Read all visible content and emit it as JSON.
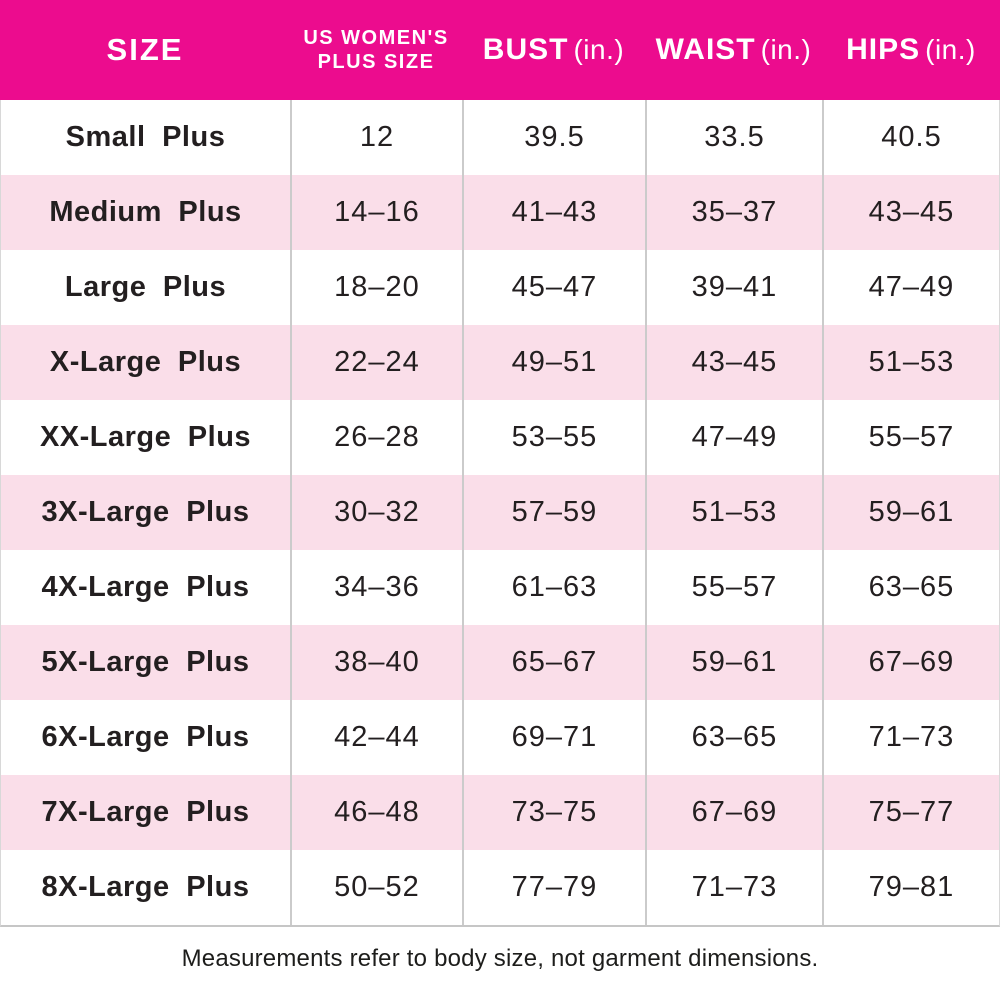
{
  "chart_data": {
    "type": "table",
    "columns": [
      "SIZE",
      "US WOMEN'S PLUS SIZE",
      "BUST (in.)",
      "WAIST (in.)",
      "HIPS (in.)"
    ],
    "rows": [
      [
        "Small Plus",
        "12",
        "39.5",
        "33.5",
        "40.5"
      ],
      [
        "Medium Plus",
        "14–16",
        "41–43",
        "35–37",
        "43–45"
      ],
      [
        "Large Plus",
        "18–20",
        "45–47",
        "39–41",
        "47–49"
      ],
      [
        "X-Large Plus",
        "22–24",
        "49–51",
        "43–45",
        "51–53"
      ],
      [
        "XX-Large Plus",
        "26–28",
        "53–55",
        "47–49",
        "55–57"
      ],
      [
        "3X-Large Plus",
        "30–32",
        "57–59",
        "51–53",
        "59–61"
      ],
      [
        "4X-Large Plus",
        "34–36",
        "61–63",
        "55–57",
        "63–65"
      ],
      [
        "5X-Large Plus",
        "38–40",
        "65–67",
        "59–61",
        "67–69"
      ],
      [
        "6X-Large Plus",
        "42–44",
        "69–71",
        "63–65",
        "71–73"
      ],
      [
        "7X-Large Plus",
        "46–48",
        "73–75",
        "67–69",
        "75–77"
      ],
      [
        "8X-Large Plus",
        "50–52",
        "77–79",
        "71–73",
        "79–81"
      ]
    ],
    "footnote": "Measurements refer to body size, not garment dimensions.",
    "layout": {
      "alternating_row_shading": true,
      "grid": "vertical-dividers-only",
      "legend": "none"
    }
  },
  "header": {
    "col1": "SIZE",
    "col2_line1": "US WOMEN'S",
    "col2_line2": "PLUS SIZE",
    "col3": "BUST",
    "col4": "WAIST",
    "col5": "HIPS",
    "unit": "(in.)"
  },
  "colors": {
    "header_bg": "#EC0C8E",
    "header_text": "#FFFFFF",
    "alt_row_bg": "#FADEE9",
    "body_text": "#231F20",
    "divider": "#CBCBCB"
  }
}
